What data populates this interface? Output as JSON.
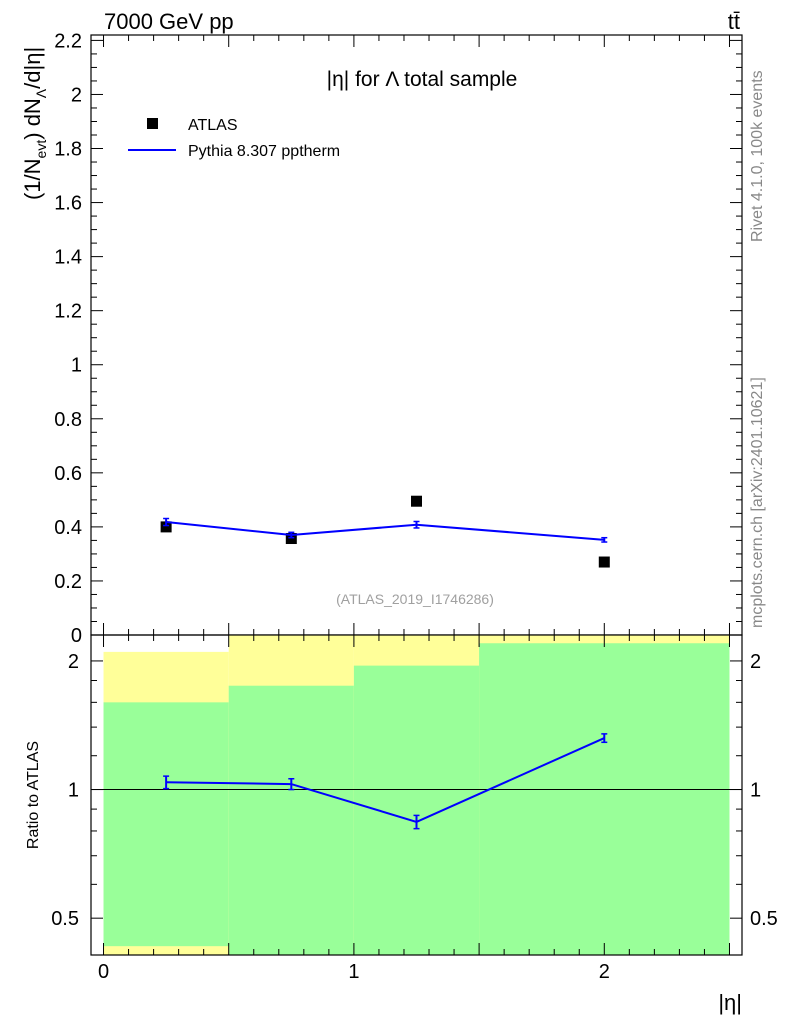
{
  "header": {
    "left": "7000 GeV pp",
    "right": "tt̄"
  },
  "side_labels": {
    "rivet": "Rivet 4.1.0,  100k events",
    "mcplots": "mcplots.cern.ch [arXiv:2401.10621]"
  },
  "chart_data": [
    {
      "type": "scatter",
      "panel": "main",
      "title": "|η| for Λ total sample",
      "ylabel": "(1/N_evt) dN_Λ/d|η|",
      "xlabel": "|η|",
      "xlim": [
        -0.05,
        2.55
      ],
      "ylim": [
        0,
        2.22
      ],
      "yticks": [
        0,
        0.2,
        0.4,
        0.6,
        0.8,
        1,
        1.2,
        1.4,
        1.6,
        1.8,
        2,
        2.2
      ],
      "ytick_labels": [
        "0",
        "0.2",
        "0.4",
        "0.6",
        "0.8",
        "1",
        "1.2",
        "1.4",
        "1.6",
        "1.8",
        "2",
        "2.2"
      ],
      "watermark": "(ATLAS_2019_I1746286)",
      "legend_position": "top-left",
      "series": [
        {
          "name": "ATLAS",
          "style": "marker",
          "color": "#000000",
          "x": [
            0.25,
            0.75,
            1.25,
            2.0
          ],
          "y": [
            0.4,
            0.357,
            0.495,
            0.27
          ]
        },
        {
          "name": "Pythia 8.307 pptherm",
          "style": "line",
          "color": "#0000ff",
          "x": [
            0.25,
            0.75,
            1.25,
            2.0
          ],
          "y": [
            0.418,
            0.37,
            0.408,
            0.352
          ],
          "yerr": [
            0.013,
            0.01,
            0.012,
            0.008
          ]
        }
      ]
    },
    {
      "type": "line",
      "panel": "ratio",
      "ylabel": "Ratio to ATLAS",
      "xlabel": "|η|",
      "yscale": "log",
      "xlim": [
        -0.05,
        2.55
      ],
      "ylim": [
        0.41,
        2.3
      ],
      "yticks": [
        0.5,
        1,
        2
      ],
      "ytick_labels": [
        "0.5",
        "1",
        "2"
      ],
      "xticks": [
        0,
        1,
        2
      ],
      "xtick_labels": [
        "0",
        "1",
        "2"
      ],
      "bands": [
        {
          "x0": 0.0,
          "x1": 0.5,
          "green": [
            0.43,
            1.6
          ],
          "yellow": [
            0.39,
            2.1
          ]
        },
        {
          "x0": 0.5,
          "x1": 1.0,
          "green": [
            0.39,
            1.75
          ],
          "yellow": [
            0.39,
            2.5
          ]
        },
        {
          "x0": 1.0,
          "x1": 1.5,
          "green": [
            0.39,
            1.95
          ],
          "yellow": [
            0.39,
            2.5
          ]
        },
        {
          "x0": 1.5,
          "x1": 2.5,
          "green": [
            0.39,
            2.2
          ],
          "yellow": [
            0.39,
            2.5
          ]
        }
      ],
      "series": [
        {
          "name": "Pythia 8.307 pptherm / ATLAS",
          "color": "#0000ff",
          "x": [
            0.25,
            0.75,
            1.25,
            2.0
          ],
          "y": [
            1.04,
            1.03,
            0.84,
            1.32
          ],
          "yerr": [
            0.035,
            0.03,
            0.03,
            0.03
          ]
        }
      ]
    }
  ]
}
